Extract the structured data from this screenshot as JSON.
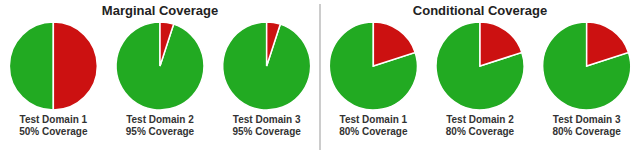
{
  "chart_data": [
    {
      "type": "pie",
      "title": "Marginal Coverage",
      "categories": [
        "Test Domain 1\n50% Coverage",
        "Test Domain 2\n95% Coverage",
        "Test Domain 3\n95% Coverage"
      ],
      "series": [
        {
          "color": "#22aa22",
          "values": [
            50,
            95,
            95
          ]
        },
        {
          "color": "#cc1111",
          "values": [
            50,
            5,
            5
          ]
        }
      ]
    },
    {
      "type": "pie",
      "title": "Conditional Coverage",
      "categories": [
        "Test Domain 1\n80% Coverage",
        "Test Domain 2\n80% Coverage",
        "Test Domain 3\n80% Coverage"
      ],
      "series": [
        {
          "color": "#22aa22",
          "values": [
            80,
            80,
            80
          ]
        },
        {
          "color": "#cc1111",
          "values": [
            20,
            20,
            20
          ]
        }
      ]
    }
  ]
}
